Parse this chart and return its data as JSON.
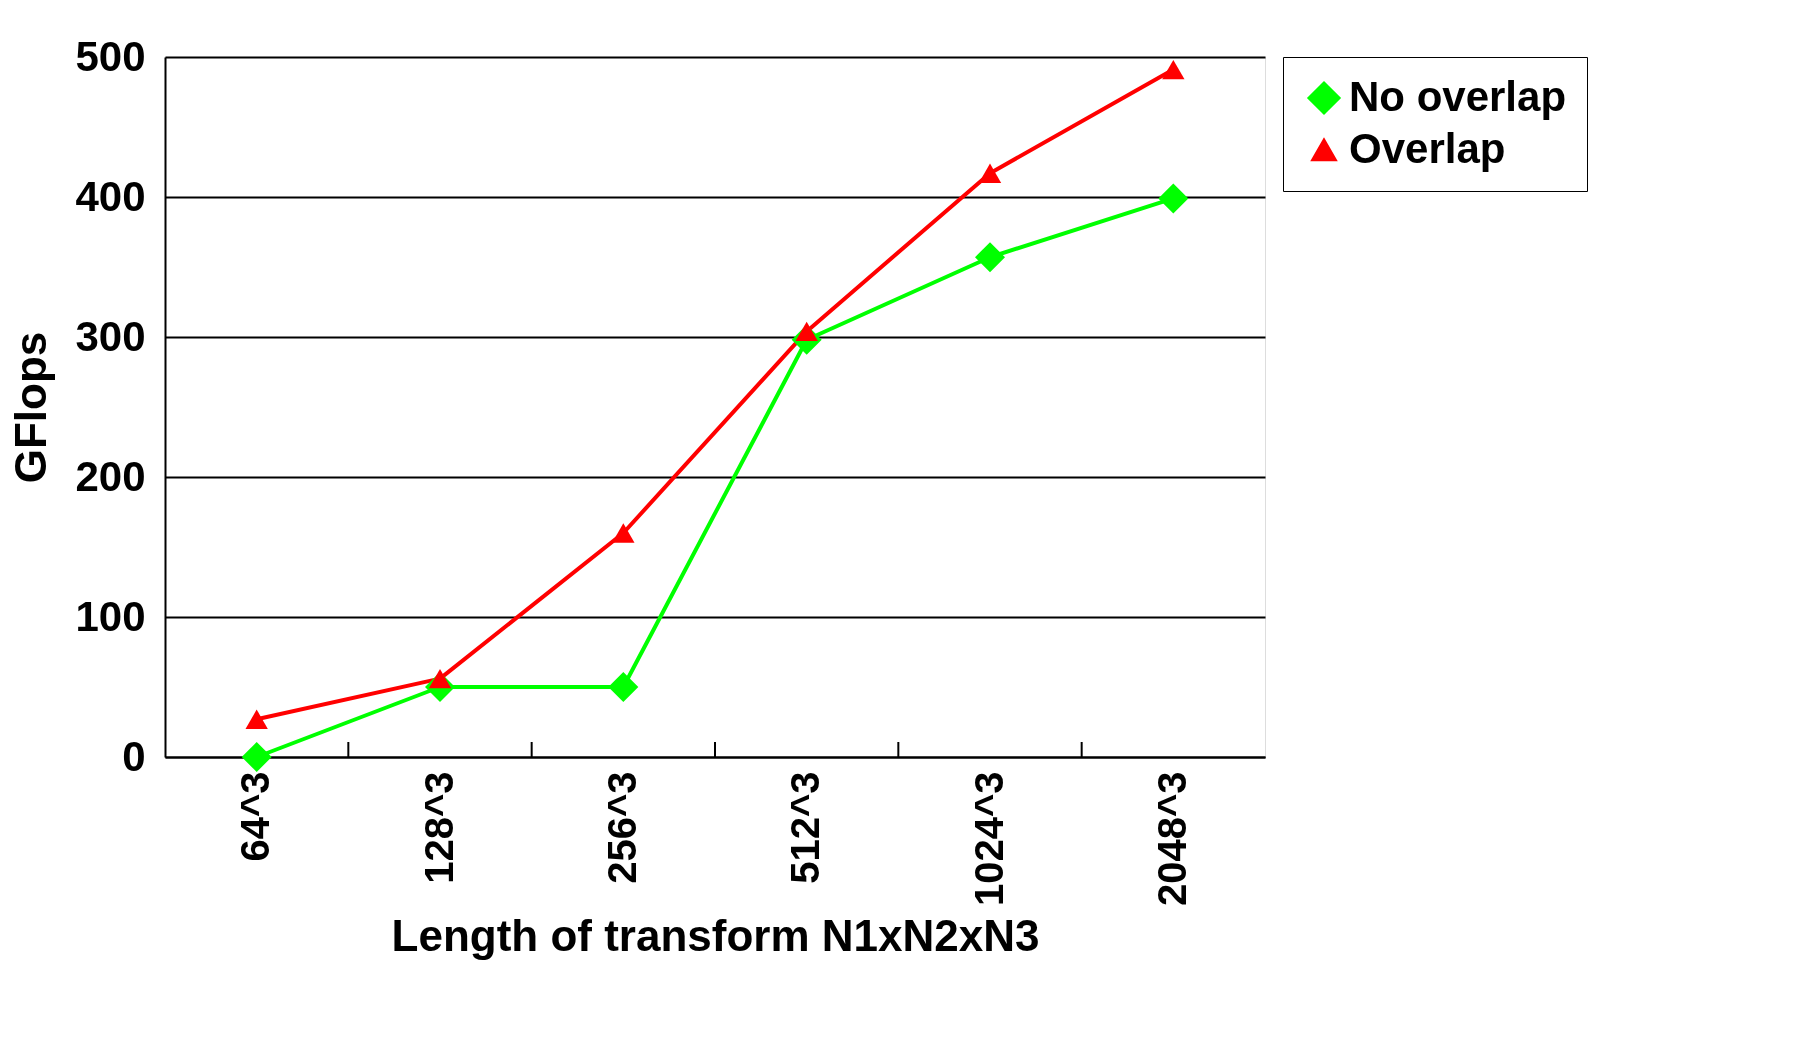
{
  "chart_data": {
    "type": "line",
    "xlabel": "Length of transform N1xN2xN3",
    "ylabel": "GFlops",
    "categories": [
      "64^3",
      "128^3",
      "256^3",
      "512^3",
      "1024^3",
      "2048^3"
    ],
    "series": [
      {
        "name": "No overlap",
        "color": "#00ff00",
        "marker": "diamond",
        "values": [
          0,
          50,
          50,
          298,
          357,
          399
        ]
      },
      {
        "name": "Overlap",
        "color": "#ff0000",
        "marker": "triangle",
        "values": [
          27,
          56,
          160,
          304,
          417,
          491
        ]
      }
    ],
    "ylim": [
      0,
      500
    ],
    "yticks": [
      0,
      100,
      200,
      300,
      400,
      500
    ],
    "grid": "y",
    "legend": "top right",
    "line_style": "solid"
  }
}
